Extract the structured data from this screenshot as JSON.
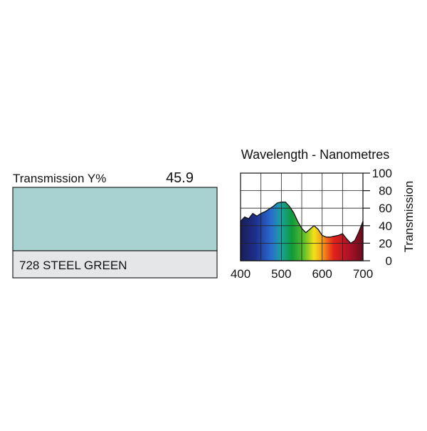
{
  "swatch": {
    "label": "Transmission Y%",
    "value_label": "45.9",
    "name": "728 STEEL GREEN",
    "color": "#a8d1d2"
  },
  "chart_data": {
    "type": "area",
    "title": "Wavelength - Nanometres",
    "y_label": "Transmission",
    "x": [
      400,
      410,
      420,
      430,
      440,
      450,
      460,
      470,
      480,
      490,
      500,
      510,
      520,
      530,
      540,
      550,
      560,
      570,
      580,
      590,
      600,
      610,
      620,
      630,
      640,
      650,
      660,
      670,
      680,
      690,
      700
    ],
    "values": [
      45,
      50,
      48,
      54,
      51,
      54,
      56,
      59,
      62,
      66,
      67,
      67,
      62,
      55,
      45,
      37,
      32,
      36,
      40,
      36,
      29,
      27,
      27,
      28,
      29,
      31,
      25,
      20,
      23,
      33,
      45
    ],
    "xlim": [
      400,
      700
    ],
    "ylim": [
      0,
      100
    ],
    "xticks": [
      400,
      500,
      600,
      700
    ],
    "yticks": [
      0,
      20,
      40,
      60,
      80,
      100
    ],
    "grid": true
  }
}
